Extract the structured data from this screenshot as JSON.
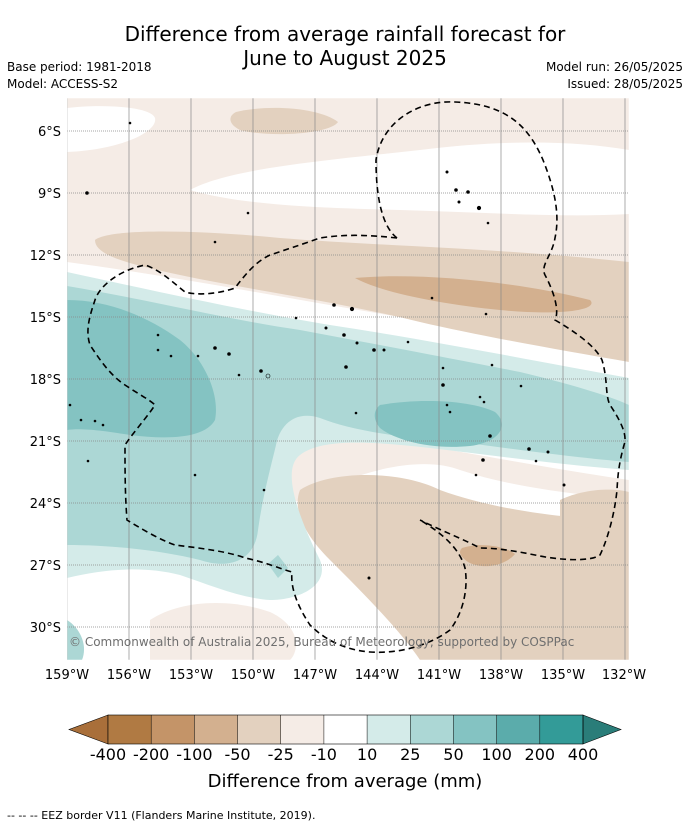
{
  "title_line1": "Difference from average rainfall forecast for",
  "title_line2": "June to August 2025",
  "meta_left": [
    "Base period: 1981-2018",
    "Model: ACCESS-S2"
  ],
  "meta_right": [
    "Model run: 26/05/2025",
    "Issued: 28/05/2025"
  ],
  "map": {
    "lat_labels": [
      "6°S",
      "9°S",
      "12°S",
      "15°S",
      "18°S",
      "21°S",
      "24°S",
      "27°S",
      "30°S"
    ],
    "lon_labels": [
      "159°W",
      "156°W",
      "153°W",
      "150°W",
      "147°W",
      "144°W",
      "141°W",
      "138°W",
      "135°W",
      "132°W"
    ],
    "copyright": "© Commonwealth of Australia 2025, Bureau of Meteorology, supported by COSPPac",
    "eez_line_style": "dashed"
  },
  "colorbar": {
    "ticks": [
      "-400",
      "-200",
      "-100",
      "-50",
      "-25",
      "-10",
      "10",
      "25",
      "50",
      "100",
      "200",
      "400"
    ],
    "colors": [
      "#a96f3a",
      "#b07a43",
      "#c49468",
      "#d3b08f",
      "#e3d1bf",
      "#f5ece6",
      "#ffffff",
      "#d4ebe9",
      "#acd7d5",
      "#84c3c2",
      "#5bacab",
      "#339b98",
      "#2a7d79"
    ],
    "label": "Difference from average (mm)"
  },
  "footer": "--  --  -- EEZ border V11 (Flanders Marine Institute, 2019)."
}
